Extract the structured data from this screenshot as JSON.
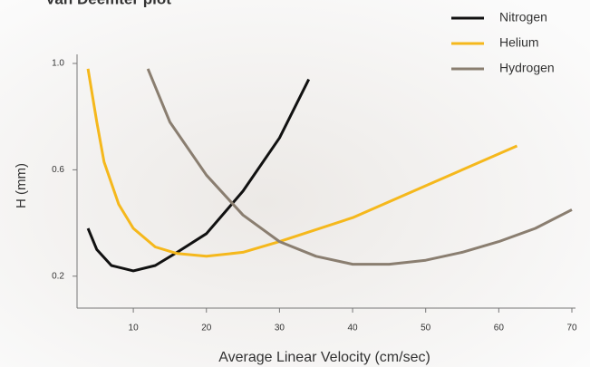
{
  "chart_data": {
    "type": "line",
    "title": "Van Deemter plot",
    "x_label": "Average Linear Velocity (cm/sec)",
    "y_label": "H (mm)",
    "xlim": [
      2.3,
      70
    ],
    "ylim": [
      0.08,
      1.0
    ],
    "xticks": [
      10,
      20,
      30,
      40,
      50,
      60,
      70
    ],
    "yticks": [
      0.2,
      0.6,
      {
        "value": 1,
        "label": "1.0"
      }
    ],
    "legend": "upper right",
    "series": [
      {
        "name": "Nitrogen",
        "color": "#111111",
        "x": [
          3.8,
          5,
          7,
          10,
          13,
          16,
          20,
          25,
          30,
          34
        ],
        "values": [
          0.38,
          0.3,
          0.24,
          0.22,
          0.24,
          0.29,
          0.36,
          0.52,
          0.72,
          0.94
        ]
      },
      {
        "name": "Helium",
        "color": "#f5b81c",
        "x": [
          3.8,
          5,
          6,
          8,
          10,
          13,
          16,
          20,
          25,
          30,
          40,
          50,
          62.5
        ],
        "values": [
          0.98,
          0.78,
          0.63,
          0.47,
          0.38,
          0.31,
          0.285,
          0.275,
          0.29,
          0.33,
          0.42,
          0.54,
          0.69
        ]
      },
      {
        "name": "Hydrogen",
        "color": "#8a7e70",
        "x": [
          12,
          15,
          20,
          25,
          30,
          35,
          40,
          45,
          50,
          55,
          60,
          65,
          70
        ],
        "values": [
          0.98,
          0.78,
          0.58,
          0.43,
          0.33,
          0.275,
          0.245,
          0.245,
          0.26,
          0.29,
          0.33,
          0.38,
          0.45
        ]
      }
    ]
  }
}
